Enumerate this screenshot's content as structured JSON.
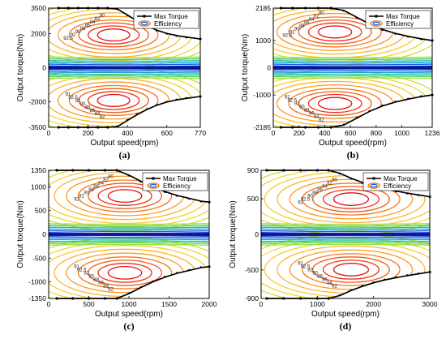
{
  "chart_data": [
    {
      "type": "contour",
      "caption": "(a)",
      "xlabel": "Output speed(rpm)",
      "ylabel": "Output torque(Nm)",
      "xticks": [
        0,
        200,
        400,
        600,
        770
      ],
      "yticks": [
        -3500,
        -2000,
        0,
        2000,
        3500
      ],
      "xlim": [
        0,
        770
      ],
      "ylim": [
        -3500,
        3500
      ],
      "legend": {
        "position": "top-right",
        "entries": [
          "Max Torque",
          "Efficiency"
        ]
      },
      "max_torque_curve": {
        "x": [
          50,
          100,
          150,
          200,
          250,
          300,
          350,
          400,
          450,
          500,
          550,
          600,
          650,
          700,
          770
        ],
        "y": [
          3500,
          3500,
          3500,
          3500,
          3500,
          3500,
          3450,
          3100,
          2750,
          2450,
          2200,
          2020,
          1890,
          1800,
          1690
        ]
      },
      "peak_x": 330,
      "peak_y_frac": 0.55,
      "contour_labels": [
        "92.5",
        "92",
        "90",
        "88",
        "86",
        "84",
        "82",
        "80",
        "91",
        "92.5",
        "92",
        "90",
        "88",
        "86",
        "84",
        "82"
      ]
    },
    {
      "type": "contour",
      "caption": "(b)",
      "xlabel": "Output speed(rpm)",
      "ylabel": "Output torque(Nm)",
      "xticks": [
        0,
        200,
        400,
        600,
        800,
        1000,
        1236
      ],
      "yticks": [
        -2185,
        -1000,
        0,
        1000,
        2185
      ],
      "xlim": [
        0,
        1236
      ],
      "ylim": [
        -2185,
        2185
      ],
      "legend": {
        "position": "top-right",
        "entries": [
          "Max Torque",
          "Efficiency"
        ]
      },
      "max_torque_curve": {
        "x": [
          60,
          150,
          250,
          350,
          450,
          550,
          650,
          750,
          850,
          950,
          1050,
          1150,
          1236
        ],
        "y": [
          2185,
          2185,
          2185,
          2185,
          2185,
          2100,
          1850,
          1600,
          1400,
          1260,
          1150,
          1060,
          1000
        ]
      },
      "peak_x": 480,
      "peak_y_frac": 0.6,
      "contour_labels": [
        "92.5",
        "92",
        "90",
        "88",
        "86",
        "84",
        "82",
        "80",
        "91",
        "92.5",
        "92",
        "90",
        "88",
        "86",
        "84",
        "82"
      ]
    },
    {
      "type": "contour",
      "caption": "(c)",
      "xlabel": "Output speed(rpm)",
      "ylabel": "Output torque(Nm)",
      "xticks": [
        0,
        500,
        1000,
        1500,
        2000
      ],
      "yticks": [
        -1350,
        -1000,
        -500,
        0,
        500,
        1000,
        1350
      ],
      "xlim": [
        0,
        2000
      ],
      "ylim": [
        -1350,
        1350
      ],
      "legend": {
        "position": "top-right",
        "entries": [
          "Max Torque",
          "Efficiency"
        ]
      },
      "max_torque_curve": {
        "x": [
          100,
          300,
          500,
          700,
          850,
          1000,
          1150,
          1300,
          1450,
          1600,
          1750,
          1900,
          2000
        ],
        "y": [
          1350,
          1350,
          1350,
          1350,
          1350,
          1250,
          1120,
          1000,
          900,
          820,
          760,
          700,
          680
        ]
      },
      "peak_x": 950,
      "peak_y_frac": 0.6,
      "contour_labels": [
        "92",
        "91",
        "90",
        "88",
        "86",
        "84",
        "82",
        "80",
        "91",
        "92.5",
        "92",
        "90",
        "88",
        "86",
        "84",
        "82"
      ]
    },
    {
      "type": "contour",
      "caption": "(d)",
      "xlabel": "Output speed(rpm)",
      "ylabel": "Output torque(Nm)",
      "xticks": [
        0,
        1000,
        2000,
        3000
      ],
      "yticks": [
        -900,
        -500,
        0,
        500,
        900
      ],
      "xlim": [
        0,
        3000
      ],
      "ylim": [
        -900,
        900
      ],
      "legend": {
        "position": "top-right",
        "entries": [
          "Max Torque",
          "Efficiency"
        ]
      },
      "max_torque_curve": {
        "x": [
          100,
          400,
          700,
          1000,
          1200,
          1400,
          1600,
          1800,
          2000,
          2200,
          2400,
          2600,
          2800,
          3000
        ],
        "y": [
          900,
          900,
          900,
          900,
          900,
          860,
          790,
          730,
          680,
          640,
          610,
          580,
          555,
          530
        ]
      },
      "peak_x": 1600,
      "peak_y_frac": 0.55,
      "contour_labels": [
        "92",
        "92.5",
        "90",
        "88",
        "86",
        "84",
        "82",
        "80",
        "91",
        "92.5",
        "92",
        "90",
        "88",
        "86",
        "84",
        "82"
      ]
    }
  ]
}
